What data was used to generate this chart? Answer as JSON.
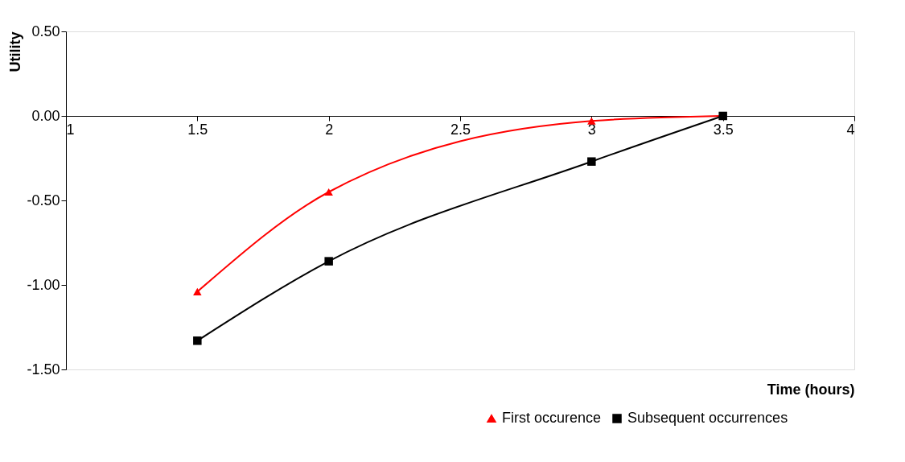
{
  "chart_data": {
    "type": "line",
    "xlabel": "Time (hours)",
    "ylabel": "Utility",
    "x": [
      1.5,
      2,
      3,
      3.5
    ],
    "series": [
      {
        "name": "First occurence",
        "color": "#ff0000",
        "marker": "triangle",
        "values": [
          -1.04,
          -0.45,
          -0.03,
          0.0
        ]
      },
      {
        "name": "Subsequent occurrences",
        "color": "#000000",
        "marker": "square",
        "values": [
          -1.33,
          -0.86,
          -0.27,
          0.0
        ]
      }
    ],
    "xlim": [
      1,
      4
    ],
    "xticks": [
      1,
      1.5,
      2,
      2.5,
      3,
      3.5,
      4
    ],
    "ylim": [
      -1.5,
      0.5
    ],
    "yticks": [
      {
        "value": -1.5,
        "label": "-1.50"
      },
      {
        "value": -1.0,
        "label": "-1.00"
      },
      {
        "value": -0.5,
        "label": "-0.50"
      },
      {
        "value": 0,
        "label": "0.00"
      },
      {
        "value": 0.5,
        "label": "0.50"
      }
    ],
    "grid": false,
    "legend": "bottom right",
    "line_style": "solid"
  }
}
